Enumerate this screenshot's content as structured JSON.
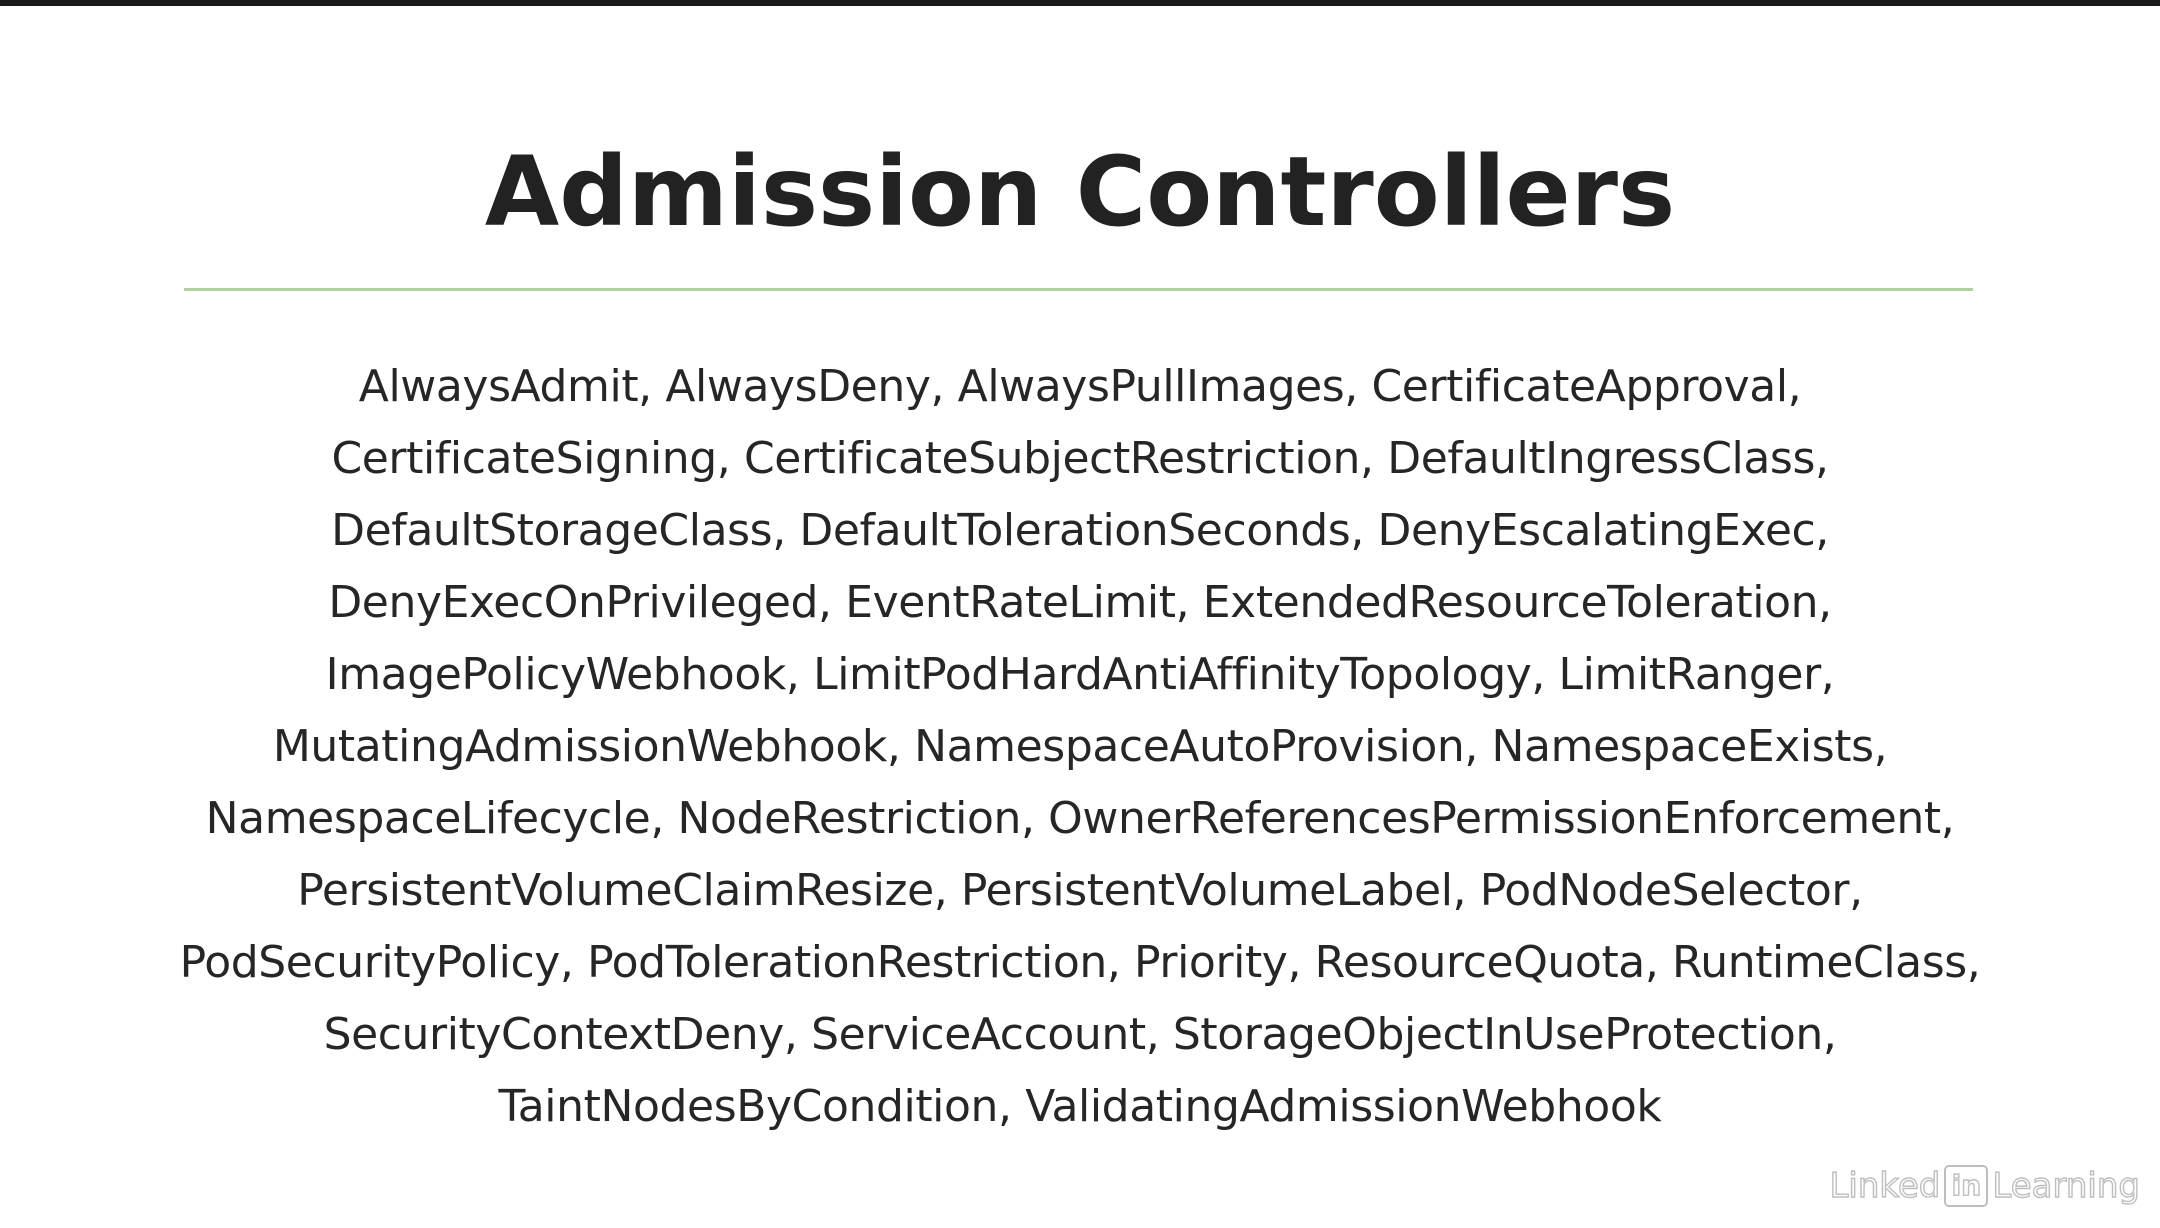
{
  "slide": {
    "title": "Admission Controllers",
    "lines": [
      "AlwaysAdmit, AlwaysDeny, AlwaysPullImages, CertificateApproval,",
      "CertificateSigning, CertificateSubjectRestriction, DefaultIngressClass,",
      "DefaultStorageClass, DefaultTolerationSeconds, DenyEscalatingExec,",
      "DenyExecOnPrivileged, EventRateLimit, ExtendedResourceToleration,",
      "ImagePolicyWebhook, LimitPodHardAntiAffinityTopology, LimitRanger,",
      "MutatingAdmissionWebhook, NamespaceAutoProvision, NamespaceExists,",
      "NamespaceLifecycle, NodeRestriction, OwnerReferencesPermissionEnforcement,",
      "PersistentVolumeClaimResize, PersistentVolumeLabel, PodNodeSelector,",
      "PodSecurityPolicy, PodTolerationRestriction, Priority, ResourceQuota, RuntimeClass,",
      "SecurityContextDeny, ServiceAccount, StorageObjectInUseProtection,",
      "TaintNodesByCondition, ValidatingAdmissionWebhook"
    ],
    "rule_color": "#b5cfa5"
  },
  "watermark": {
    "prefix": "Linked",
    "in": "in",
    "suffix": "Learning"
  }
}
